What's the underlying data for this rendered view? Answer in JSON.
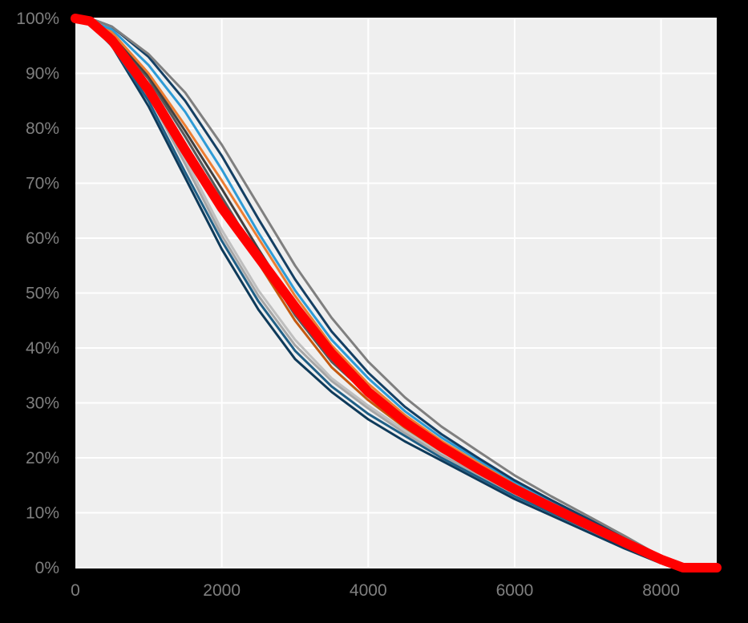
{
  "chart_data": {
    "type": "line",
    "title": "",
    "xlabel": "",
    "ylabel": "",
    "xlim": [
      0,
      8760
    ],
    "ylim": [
      0,
      1
    ],
    "x_ticks": [
      0,
      2000,
      4000,
      6000,
      8000
    ],
    "x_tick_labels": [
      "0",
      "2000",
      "4000",
      "6000",
      "8000"
    ],
    "y_ticks": [
      0,
      0.1,
      0.2,
      0.3,
      0.4,
      0.5,
      0.6,
      0.7,
      0.8,
      0.9,
      1.0
    ],
    "y_tick_labels": [
      "0%",
      "10%",
      "20%",
      "30%",
      "40%",
      "50%",
      "60%",
      "70%",
      "80%",
      "90%",
      "100%"
    ],
    "grid": true,
    "legend": "none",
    "colors": {
      "background": "#000000",
      "plot_area": "#efefef",
      "grid": "#ffffff",
      "tick_label": "#7f7f7f"
    },
    "x": [
      0,
      200,
      500,
      1000,
      1500,
      2000,
      2500,
      3000,
      3500,
      4000,
      4500,
      5000,
      5500,
      6000,
      6500,
      7000,
      7500,
      8000,
      8300,
      8760
    ],
    "series": [
      {
        "color": "#0e3a5a",
        "width": 3,
        "values": [
          1.0,
          0.99,
          0.95,
          0.84,
          0.71,
          0.58,
          0.47,
          0.38,
          0.32,
          0.27,
          0.23,
          0.195,
          0.16,
          0.125,
          0.095,
          0.065,
          0.035,
          0.008,
          0.0,
          0.0
        ]
      },
      {
        "color": "#1f5f86",
        "width": 3,
        "values": [
          1.0,
          0.99,
          0.95,
          0.85,
          0.72,
          0.595,
          0.485,
          0.395,
          0.33,
          0.28,
          0.24,
          0.2,
          0.165,
          0.13,
          0.1,
          0.07,
          0.04,
          0.012,
          0.0,
          0.0
        ]
      },
      {
        "color": "#a6a6a6",
        "width": 3,
        "values": [
          1.0,
          0.99,
          0.955,
          0.86,
          0.735,
          0.605,
          0.495,
          0.405,
          0.34,
          0.29,
          0.245,
          0.205,
          0.17,
          0.135,
          0.104,
          0.073,
          0.043,
          0.014,
          0.0,
          0.0
        ]
      },
      {
        "color": "#bfbfbf",
        "width": 3,
        "values": [
          1.0,
          0.99,
          0.955,
          0.865,
          0.745,
          0.615,
          0.505,
          0.415,
          0.345,
          0.295,
          0.25,
          0.21,
          0.174,
          0.138,
          0.107,
          0.076,
          0.045,
          0.015,
          0.0,
          0.0
        ]
      },
      {
        "color": "#c55a11",
        "width": 3,
        "values": [
          1.0,
          0.995,
          0.965,
          0.88,
          0.77,
          0.665,
          0.555,
          0.45,
          0.365,
          0.305,
          0.255,
          0.212,
          0.176,
          0.14,
          0.108,
          0.077,
          0.046,
          0.015,
          0.0,
          0.0
        ]
      },
      {
        "color": "#595959",
        "width": 3,
        "values": [
          1.0,
          0.995,
          0.97,
          0.89,
          0.785,
          0.675,
          0.565,
          0.46,
          0.375,
          0.315,
          0.265,
          0.22,
          0.183,
          0.146,
          0.113,
          0.08,
          0.048,
          0.016,
          0.0,
          0.0
        ]
      },
      {
        "color": "#404040",
        "width": 3,
        "values": [
          1.0,
          0.995,
          0.97,
          0.895,
          0.795,
          0.69,
          0.58,
          0.475,
          0.39,
          0.325,
          0.27,
          0.225,
          0.187,
          0.149,
          0.115,
          0.082,
          0.05,
          0.017,
          0.0,
          0.0
        ]
      },
      {
        "color": "#ed7d31",
        "width": 3,
        "values": [
          1.0,
          0.995,
          0.975,
          0.9,
          0.805,
          0.705,
          0.6,
          0.495,
          0.405,
          0.335,
          0.278,
          0.231,
          0.191,
          0.152,
          0.118,
          0.084,
          0.051,
          0.017,
          0.0,
          0.0
        ]
      },
      {
        "color": "#2e9bd6",
        "width": 3,
        "values": [
          1.0,
          0.995,
          0.98,
          0.915,
          0.83,
          0.725,
          0.61,
          0.505,
          0.415,
          0.345,
          0.285,
          0.237,
          0.196,
          0.156,
          0.121,
          0.087,
          0.053,
          0.018,
          0.0,
          0.0
        ]
      },
      {
        "color": "#143f63",
        "width": 3,
        "values": [
          1.0,
          1.0,
          0.985,
          0.93,
          0.85,
          0.75,
          0.635,
          0.525,
          0.43,
          0.355,
          0.293,
          0.243,
          0.2,
          0.159,
          0.123,
          0.089,
          0.054,
          0.018,
          0.0,
          0.0
        ]
      },
      {
        "color": "#7f7f7f",
        "width": 3,
        "values": [
          1.0,
          1.0,
          0.985,
          0.935,
          0.865,
          0.77,
          0.66,
          0.55,
          0.455,
          0.375,
          0.31,
          0.257,
          0.212,
          0.168,
          0.13,
          0.094,
          0.058,
          0.02,
          0.0,
          0.0
        ]
      },
      {
        "color": "#ff0000",
        "width": 12,
        "values": [
          1.0,
          0.995,
          0.96,
          0.87,
          0.76,
          0.655,
          0.565,
          0.475,
          0.39,
          0.32,
          0.265,
          0.22,
          0.18,
          0.143,
          0.11,
          0.078,
          0.046,
          0.015,
          0.0,
          0.0
        ]
      }
    ]
  }
}
